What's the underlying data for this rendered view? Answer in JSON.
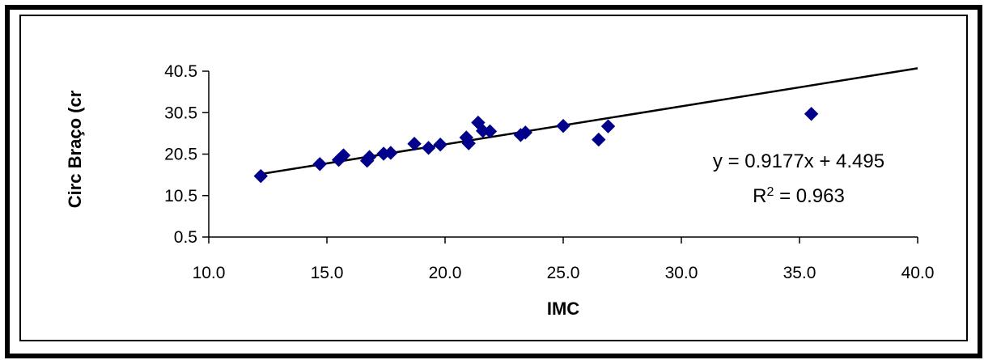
{
  "chart_data": {
    "type": "scatter",
    "xlabel": "IMC",
    "ylabel": "Circ Braço (cr",
    "xlim": [
      10.0,
      40.0
    ],
    "ylim": [
      0.5,
      40.5
    ],
    "xticks": [
      "10.0",
      "15.0",
      "20.0",
      "25.0",
      "30.0",
      "35.0",
      "40.0"
    ],
    "yticks": [
      "0.5",
      "10.5",
      "20.5",
      "30.5",
      "40.5"
    ],
    "series": [
      {
        "marker": "diamond",
        "color": "#00008B",
        "points": [
          [
            12.2,
            15.2
          ],
          [
            14.7,
            18.1
          ],
          [
            15.5,
            19.1
          ],
          [
            15.7,
            20.2
          ],
          [
            16.7,
            18.9
          ],
          [
            16.8,
            19.8
          ],
          [
            17.4,
            20.6
          ],
          [
            17.7,
            20.8
          ],
          [
            18.7,
            23.0
          ],
          [
            19.3,
            22.0
          ],
          [
            19.8,
            22.8
          ],
          [
            20.9,
            24.5
          ],
          [
            21.0,
            23.1
          ],
          [
            21.4,
            28.1
          ],
          [
            21.6,
            26.1
          ],
          [
            21.9,
            26.0
          ],
          [
            23.2,
            25.1
          ],
          [
            23.4,
            25.7
          ],
          [
            25.0,
            27.3
          ],
          [
            26.5,
            24.0
          ],
          [
            26.9,
            27.2
          ],
          [
            35.5,
            30.2
          ]
        ]
      }
    ],
    "trendline": {
      "slope": 0.9177,
      "intercept": 4.495,
      "x_range": [
        12.2,
        40.0
      ],
      "equation": "y = 0.9177x + 4.495",
      "r2_prefix": "R",
      "r2_sup": "2",
      "r2_value": " = 0.963"
    }
  },
  "colors": {
    "marker": "#00008B",
    "trendline": "#000000"
  }
}
